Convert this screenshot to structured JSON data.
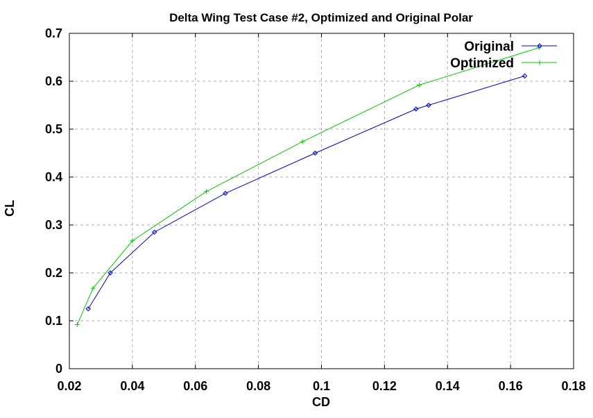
{
  "chart_data": {
    "type": "line",
    "title": "Delta Wing Test Case #2, Optimized and Original Polar",
    "xlabel": "CD",
    "ylabel": "CL",
    "xlim": [
      0.02,
      0.18
    ],
    "ylim": [
      0,
      0.7
    ],
    "xticks": [
      0.02,
      0.04,
      0.06,
      0.08,
      0.1,
      0.12,
      0.14,
      0.16,
      0.18
    ],
    "xtick_labels": [
      "0.02",
      "0.04",
      "0.06",
      "0.08",
      "0.1",
      "0.12",
      "0.14",
      "0.16",
      "0.18"
    ],
    "yticks": [
      0,
      0.1,
      0.2,
      0.3,
      0.4,
      0.5,
      0.6,
      0.7
    ],
    "ytick_labels": [
      "0",
      "0.1",
      "0.2",
      "0.3",
      "0.4",
      "0.5",
      "0.6",
      "0.7"
    ],
    "grid": true,
    "legend_position": "top-right",
    "series": [
      {
        "name": "Original",
        "color": "#0000cc",
        "marker": "diamond",
        "x": [
          0.026,
          0.033,
          0.047,
          0.0695,
          0.098,
          0.13,
          0.134,
          0.1645
        ],
        "y": [
          0.125,
          0.2,
          0.285,
          0.366,
          0.45,
          0.542,
          0.55,
          0.611
        ]
      },
      {
        "name": "Optimized",
        "color": "#00cc00",
        "marker": "plus",
        "x": [
          0.0225,
          0.0275,
          0.04,
          0.0635,
          0.094,
          0.131,
          0.169
        ],
        "y": [
          0.092,
          0.168,
          0.267,
          0.37,
          0.474,
          0.592,
          0.67
        ]
      }
    ]
  }
}
